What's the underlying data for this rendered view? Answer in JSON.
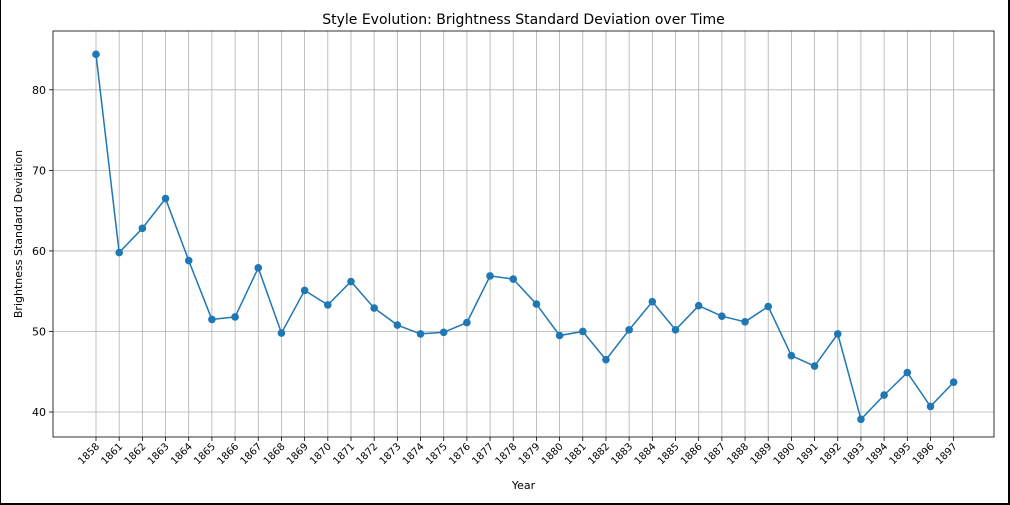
{
  "chart_data": {
    "type": "line",
    "title": "Style Evolution: Brightness Standard Deviation over Time",
    "xlabel": "Year",
    "ylabel": "Brightness Standard Deviation",
    "categories": [
      "1858",
      "1861",
      "1862",
      "1863",
      "1864",
      "1865",
      "1866",
      "1867",
      "1868",
      "1869",
      "1870",
      "1871",
      "1872",
      "1873",
      "1874",
      "1875",
      "1876",
      "1877",
      "1878",
      "1879",
      "1880",
      "1881",
      "1882",
      "1883",
      "1884",
      "1885",
      "1886",
      "1887",
      "1888",
      "1889",
      "1890",
      "1891",
      "1892",
      "1893",
      "1894",
      "1895",
      "1896",
      "1897"
    ],
    "values": [
      84.4,
      59.8,
      62.8,
      66.5,
      58.8,
      51.5,
      51.8,
      57.9,
      49.8,
      55.1,
      53.3,
      56.2,
      52.9,
      50.8,
      49.7,
      49.9,
      51.1,
      56.9,
      56.5,
      53.4,
      49.5,
      50.0,
      46.5,
      50.2,
      53.7,
      50.2,
      53.2,
      51.9,
      51.2,
      53.1,
      47.0,
      45.7,
      49.7,
      39.1,
      42.1,
      44.9,
      40.7,
      43.7
    ],
    "ylim": [
      36.9,
      87.3
    ],
    "yticks": [
      40,
      50,
      60,
      70,
      80
    ],
    "grid": true,
    "color": "#1f77b4"
  }
}
